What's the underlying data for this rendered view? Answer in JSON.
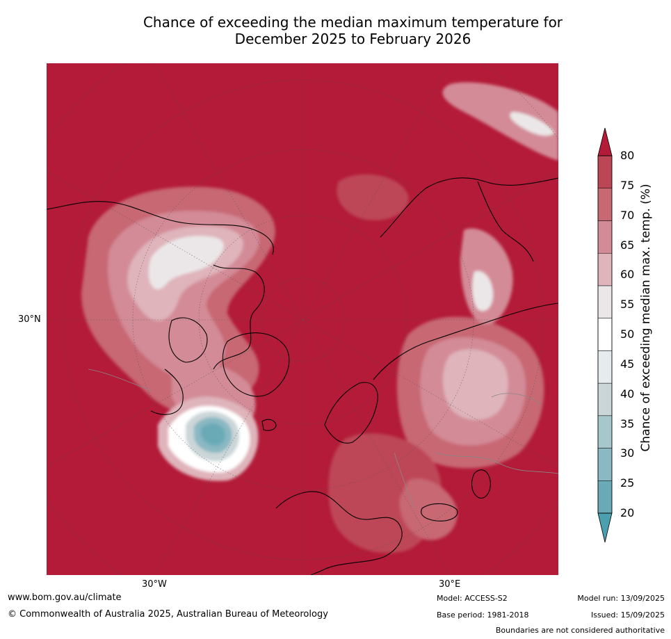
{
  "title": {
    "line1": "Chance of exceeding the median maximum temperature for",
    "line2": "December 2025 to February 2026"
  },
  "map": {
    "projection": "north polar stereographic",
    "lon_labels": [
      "30°W",
      "30°E"
    ],
    "lat_labels": [
      "30°N"
    ],
    "background_color": "#b31b38"
  },
  "colorbar": {
    "title": "Chance of exceeding median max. temp. (%)",
    "ticks": [
      "20",
      "25",
      "30",
      "35",
      "40",
      "45",
      "50",
      "55",
      "60",
      "65",
      "70",
      "75",
      "80"
    ],
    "colors": [
      "#6aaab7",
      "#8ab8c3",
      "#a8c7cc",
      "#cbd6d8",
      "#e6ecee",
      "#ffffff",
      "#ebe7e8",
      "#dfb4bb",
      "#d38b97",
      "#c76873",
      "#bd4656"
    ],
    "under_color": "#4aa0ae",
    "over_color": "#b31b38"
  },
  "footer": {
    "website": "www.bom.gov.au/climate",
    "copyright": "© Commonwealth of Australia 2025, Australian Bureau of Meteorology",
    "model": "Model: ACCESS-S2",
    "base_period": "Base period: 1981-2018",
    "model_run": "Model run: 13/09/2025",
    "issued": "Issued: 15/09/2025",
    "disclaimer": "Boundaries are not considered authoritative"
  }
}
